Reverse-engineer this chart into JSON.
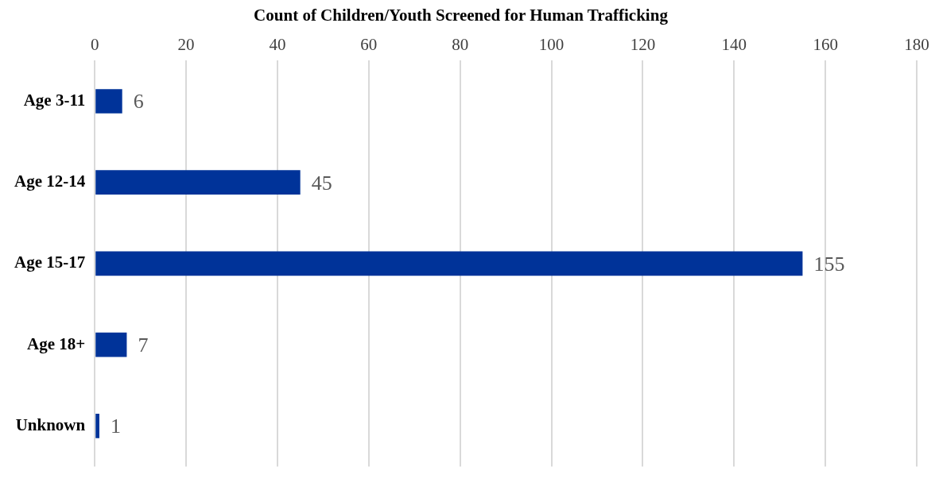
{
  "chart_data": {
    "type": "bar",
    "orientation": "horizontal",
    "title": "Count of Children/Youth Screened for Human Trafficking",
    "categories": [
      "Age 3-11",
      "Age 12-14",
      "Age 15-17",
      "Age 18+",
      "Unknown"
    ],
    "values": [
      6,
      45,
      155,
      7,
      1
    ],
    "color": "#003399",
    "xlim": [
      0,
      180
    ],
    "xticks": [
      0,
      20,
      40,
      60,
      80,
      100,
      120,
      140,
      160,
      180
    ],
    "grid": "x",
    "legend": false,
    "data_labels": true
  }
}
